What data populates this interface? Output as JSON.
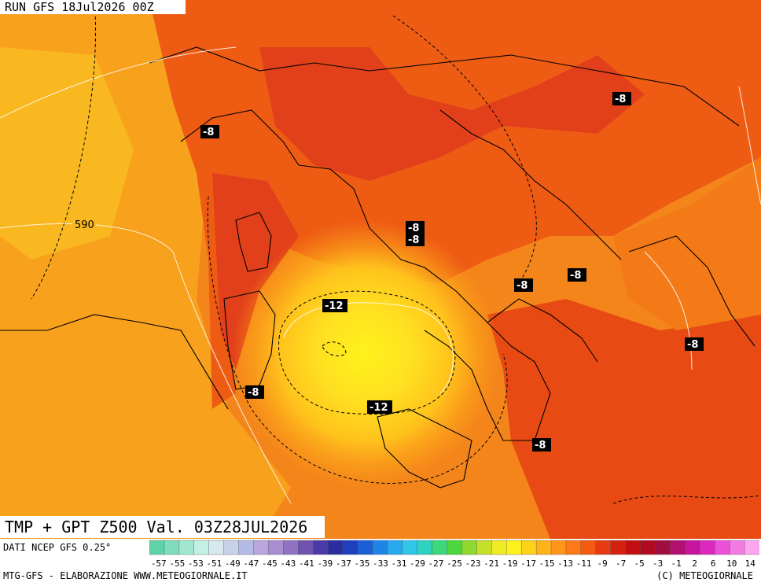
{
  "run_label": "RUN GFS 18Jul2026 00Z",
  "title": "TMP + GPT Z500 Val. 03Z28JUL2026",
  "source": "DATI NCEP GFS 0.25°",
  "footer_left": "MTG-GFS - ELABORAZIONE WWW.METEOGIORNALE.IT",
  "footer_right": "(C) METEOGIORNALE",
  "temperature_labels": [
    "-8",
    "-8",
    "-8",
    "-8",
    "-8",
    "-8",
    "-8",
    "-8",
    "-8",
    "-12",
    "-12"
  ],
  "geopotential_labels": [
    "590"
  ],
  "legend": {
    "ticks": [
      "-57",
      "-55",
      "-53",
      "-51",
      "-49",
      "-47",
      "-45",
      "-43",
      "-41",
      "-39",
      "-37",
      "-35",
      "-33",
      "-31",
      "-29",
      "-27",
      "-25",
      "-23",
      "-21",
      "-19",
      "-17",
      "-15",
      "-13",
      "-11",
      "-9",
      "-7",
      "-5",
      "-3",
      "-1",
      "2",
      "6",
      "10",
      "14"
    ],
    "colors": [
      "#5fd3a8",
      "#7fdcbc",
      "#a0e6d0",
      "#c4efe3",
      "#d9e8ee",
      "#c7d2ea",
      "#b4bce6",
      "#b8a6dc",
      "#a68ed0",
      "#8f72c2",
      "#6e52b0",
      "#4a3aa6",
      "#2b2e9e",
      "#1f3fbf",
      "#1a5fd8",
      "#1e84e6",
      "#28a8ee",
      "#2fc6e8",
      "#30d2c0",
      "#3cd87e",
      "#4ed63e",
      "#8ed830",
      "#c6e02a",
      "#eeea24",
      "#fff21c",
      "#ffd21a",
      "#ffb21a",
      "#ff961a",
      "#ff7a16",
      "#f45a12",
      "#e63a10",
      "#d62010",
      "#c21012",
      "#b00a20",
      "#a00e40",
      "#b01070",
      "#c8149c",
      "#dc28c0",
      "#ec50d8",
      "#f47ae4",
      "#fba6ee"
    ]
  }
}
